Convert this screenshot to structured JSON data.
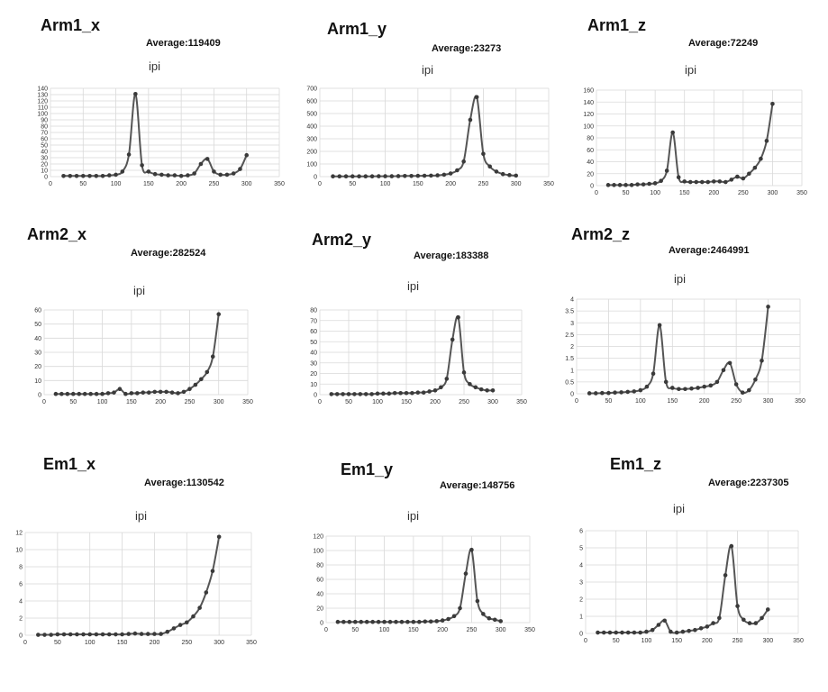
{
  "chart_data": [
    {
      "type": "line",
      "title": "Arm1_x",
      "annotation": "Average:119409",
      "subtitle": "ipi",
      "xlim": [
        0,
        350
      ],
      "ylim": [
        0,
        140
      ],
      "xticks": [
        0,
        50,
        100,
        150,
        200,
        250,
        300,
        350
      ],
      "yticks": [
        0,
        10,
        20,
        30,
        40,
        50,
        60,
        70,
        80,
        90,
        100,
        110,
        120,
        130,
        140
      ],
      "x": [
        20,
        30,
        40,
        50,
        60,
        70,
        80,
        90,
        100,
        110,
        120,
        130,
        140,
        150,
        160,
        170,
        180,
        190,
        200,
        210,
        220,
        230,
        240,
        250,
        260,
        270,
        280,
        290,
        300
      ],
      "y": [
        1,
        1,
        1,
        1,
        1,
        1,
        1,
        2,
        3,
        8,
        35,
        131,
        18,
        8,
        4,
        3,
        2,
        2,
        1,
        2,
        5,
        20,
        28,
        8,
        3,
        3,
        5,
        12,
        34
      ]
    },
    {
      "type": "line",
      "title": "Arm1_y",
      "annotation": "Average:23273",
      "subtitle": "ipi",
      "xlim": [
        0,
        350
      ],
      "ylim": [
        0,
        700
      ],
      "xticks": [
        0,
        50,
        100,
        150,
        200,
        250,
        300,
        350
      ],
      "yticks": [
        0,
        100,
        200,
        300,
        400,
        500,
        600,
        700
      ],
      "x": [
        20,
        30,
        40,
        50,
        60,
        70,
        80,
        90,
        100,
        110,
        120,
        130,
        140,
        150,
        160,
        170,
        180,
        190,
        200,
        210,
        220,
        230,
        240,
        250,
        260,
        270,
        280,
        290,
        300
      ],
      "y": [
        2,
        2,
        2,
        2,
        2,
        2,
        2,
        3,
        3,
        3,
        4,
        5,
        5,
        6,
        7,
        8,
        10,
        15,
        25,
        50,
        120,
        450,
        630,
        180,
        80,
        40,
        20,
        12,
        8
      ]
    },
    {
      "type": "line",
      "title": "Arm1_z",
      "annotation": "Average:72249",
      "subtitle": "ipi",
      "xlim": [
        0,
        350
      ],
      "ylim": [
        0,
        160
      ],
      "xticks": [
        0,
        50,
        100,
        150,
        200,
        250,
        300,
        350
      ],
      "yticks": [
        0,
        20,
        40,
        60,
        80,
        100,
        120,
        140,
        160
      ],
      "x": [
        20,
        30,
        40,
        50,
        60,
        70,
        80,
        90,
        100,
        110,
        120,
        130,
        140,
        150,
        160,
        170,
        180,
        190,
        200,
        210,
        220,
        230,
        240,
        250,
        260,
        270,
        280,
        290,
        300
      ],
      "y": [
        1,
        1,
        1,
        1,
        1,
        2,
        2,
        3,
        4,
        8,
        25,
        89,
        14,
        7,
        6,
        6,
        6,
        6,
        7,
        7,
        6,
        10,
        15,
        12,
        20,
        30,
        45,
        75,
        137
      ]
    },
    {
      "type": "line",
      "title": "Arm2_x",
      "annotation": "Average:282524",
      "subtitle": "ipi",
      "xlim": [
        0,
        350
      ],
      "ylim": [
        0,
        60
      ],
      "xticks": [
        0,
        50,
        100,
        150,
        200,
        250,
        300,
        350
      ],
      "yticks": [
        0,
        10,
        20,
        30,
        40,
        50,
        60
      ],
      "x": [
        20,
        30,
        40,
        50,
        60,
        70,
        80,
        90,
        100,
        110,
        120,
        130,
        140,
        150,
        160,
        170,
        180,
        190,
        200,
        210,
        220,
        230,
        240,
        250,
        260,
        270,
        280,
        290,
        300
      ],
      "y": [
        0.5,
        0.5,
        0.5,
        0.5,
        0.5,
        0.5,
        0.5,
        0.5,
        0.5,
        1,
        1.5,
        4,
        0.5,
        1,
        1,
        1.5,
        1.5,
        2,
        2,
        2,
        1.5,
        1,
        2,
        4,
        7,
        11,
        16,
        27,
        57
      ]
    },
    {
      "type": "line",
      "title": "Arm2_y",
      "annotation": "Average:183388",
      "subtitle": "ipi",
      "xlim": [
        0,
        350
      ],
      "ylim": [
        0,
        80
      ],
      "xticks": [
        0,
        50,
        100,
        150,
        200,
        250,
        300,
        350
      ],
      "yticks": [
        0,
        10,
        20,
        30,
        40,
        50,
        60,
        70,
        80
      ],
      "x": [
        20,
        30,
        40,
        50,
        60,
        70,
        80,
        90,
        100,
        110,
        120,
        130,
        140,
        150,
        160,
        170,
        180,
        190,
        200,
        210,
        220,
        230,
        240,
        250,
        260,
        270,
        280,
        290,
        300
      ],
      "y": [
        0.5,
        0.5,
        0.5,
        0.5,
        0.5,
        0.5,
        0.5,
        0.5,
        1,
        1,
        1,
        1.5,
        1.5,
        1.5,
        1.5,
        2,
        2,
        3,
        4,
        7,
        15,
        52,
        73,
        21,
        10,
        7,
        5,
        4,
        4
      ]
    },
    {
      "type": "line",
      "title": "Arm2_z",
      "annotation": "Average:2464991",
      "subtitle": "ipi",
      "xlim": [
        0,
        350
      ],
      "ylim": [
        0,
        4
      ],
      "xticks": [
        0,
        50,
        100,
        150,
        200,
        250,
        300,
        350
      ],
      "yticks": [
        0,
        0.5,
        1,
        1.5,
        2,
        2.5,
        3,
        3.5,
        4
      ],
      "x": [
        20,
        30,
        40,
        50,
        60,
        70,
        80,
        90,
        100,
        110,
        120,
        130,
        140,
        150,
        160,
        170,
        180,
        190,
        200,
        210,
        220,
        230,
        240,
        250,
        260,
        270,
        280,
        290,
        300
      ],
      "y": [
        0.02,
        0.02,
        0.03,
        0.03,
        0.05,
        0.06,
        0.08,
        0.1,
        0.15,
        0.3,
        0.85,
        2.9,
        0.5,
        0.25,
        0.2,
        0.2,
        0.22,
        0.25,
        0.3,
        0.35,
        0.5,
        1.0,
        1.3,
        0.4,
        0.05,
        0.15,
        0.6,
        1.4,
        3.68
      ]
    },
    {
      "type": "line",
      "title": "Em1_x",
      "annotation": "Average:1130542",
      "subtitle": "ipi",
      "xlim": [
        0,
        350
      ],
      "ylim": [
        0,
        12
      ],
      "xticks": [
        0,
        50,
        100,
        150,
        200,
        250,
        300,
        350
      ],
      "yticks": [
        0,
        2,
        4,
        6,
        8,
        10,
        12
      ],
      "x": [
        20,
        30,
        40,
        50,
        60,
        70,
        80,
        90,
        100,
        110,
        120,
        130,
        140,
        150,
        160,
        170,
        180,
        190,
        200,
        210,
        220,
        230,
        240,
        250,
        260,
        270,
        280,
        290,
        300
      ],
      "y": [
        0.05,
        0.05,
        0.05,
        0.1,
        0.1,
        0.1,
        0.1,
        0.1,
        0.1,
        0.1,
        0.1,
        0.1,
        0.1,
        0.1,
        0.15,
        0.2,
        0.15,
        0.15,
        0.15,
        0.15,
        0.4,
        0.8,
        1.2,
        1.5,
        2.2,
        3.2,
        5.0,
        7.5,
        11.5
      ]
    },
    {
      "type": "line",
      "title": "Em1_y",
      "annotation": "Average:148756",
      "subtitle": "ipi",
      "xlim": [
        0,
        350
      ],
      "ylim": [
        0,
        120
      ],
      "xticks": [
        0,
        50,
        100,
        150,
        200,
        250,
        300,
        350
      ],
      "yticks": [
        0,
        20,
        40,
        60,
        80,
        100,
        120
      ],
      "x": [
        20,
        30,
        40,
        50,
        60,
        70,
        80,
        90,
        100,
        110,
        120,
        130,
        140,
        150,
        160,
        170,
        180,
        190,
        200,
        210,
        220,
        230,
        240,
        250,
        260,
        270,
        280,
        290,
        300
      ],
      "y": [
        1,
        1,
        1,
        1,
        1,
        1,
        1,
        1,
        1,
        1,
        1,
        1,
        1,
        1,
        1,
        1.5,
        1.5,
        2,
        3,
        5,
        9,
        20,
        68,
        101,
        30,
        12,
        6,
        4,
        2
      ]
    },
    {
      "type": "line",
      "title": "Em1_z",
      "annotation": "Average:2237305",
      "subtitle": "ipi",
      "xlim": [
        0,
        350
      ],
      "ylim": [
        0,
        6
      ],
      "xticks": [
        0,
        50,
        100,
        150,
        200,
        250,
        300,
        350
      ],
      "yticks": [
        0,
        1,
        2,
        3,
        4,
        5,
        6
      ],
      "x": [
        20,
        30,
        40,
        50,
        60,
        70,
        80,
        90,
        100,
        110,
        120,
        130,
        140,
        150,
        160,
        170,
        180,
        190,
        200,
        210,
        220,
        230,
        240,
        250,
        260,
        270,
        280,
        290,
        300
      ],
      "y": [
        0.05,
        0.05,
        0.05,
        0.05,
        0.05,
        0.05,
        0.05,
        0.05,
        0.1,
        0.2,
        0.5,
        0.75,
        0.1,
        0.05,
        0.1,
        0.15,
        0.2,
        0.3,
        0.4,
        0.6,
        0.9,
        3.4,
        5.1,
        1.6,
        0.8,
        0.6,
        0.6,
        0.9,
        1.4
      ]
    }
  ]
}
